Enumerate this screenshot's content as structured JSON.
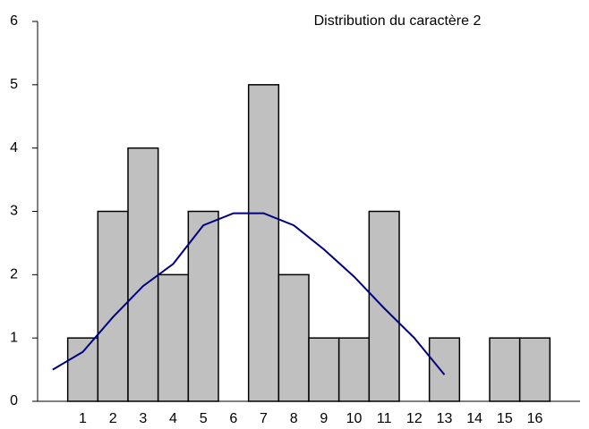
{
  "chart_data": {
    "type": "bar",
    "title": "Distribution du caractère 2",
    "categories": [
      "1",
      "2",
      "3",
      "4",
      "5",
      "6",
      "7",
      "8",
      "9",
      "10",
      "11",
      "12",
      "13",
      "14",
      "15",
      "16"
    ],
    "values": [
      1,
      3,
      4,
      2,
      3,
      0,
      5,
      2,
      1,
      1,
      3,
      0,
      1,
      0,
      1,
      1
    ],
    "color": "#c0c0c0",
    "line": {
      "color": "#000080",
      "x": [
        0,
        1,
        2,
        3,
        4,
        5,
        6,
        7,
        8,
        9,
        10,
        11,
        12,
        13
      ],
      "values": [
        0.5,
        0.78,
        1.33,
        1.82,
        2.17,
        2.78,
        2.97,
        2.97,
        2.78,
        2.4,
        1.97,
        1.47,
        1.0,
        0.42
      ]
    },
    "xlim": [
      -0.5,
      17.5
    ],
    "ylim": [
      0,
      6
    ],
    "yticks": [
      0,
      1,
      2,
      3,
      4,
      5,
      6
    ],
    "grid": false
  }
}
